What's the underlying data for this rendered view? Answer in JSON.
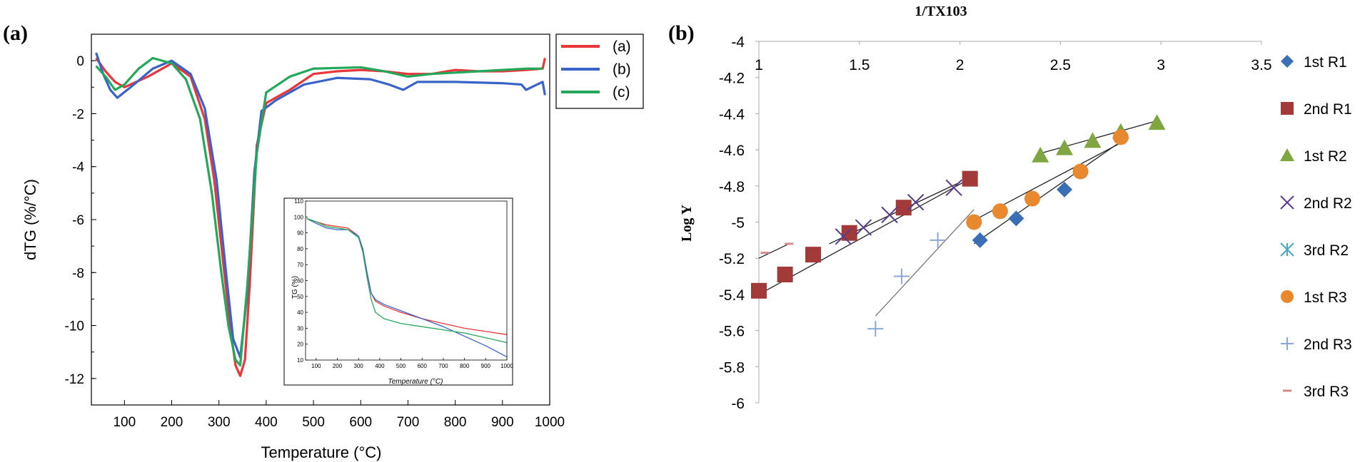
{
  "panel_a": {
    "label": "(a)",
    "chart_data": {
      "type": "line",
      "xlabel": "Temperature (°C)",
      "ylabel": "dTG (%/°C)",
      "xlim": [
        30,
        1000
      ],
      "ylim": [
        -13,
        1
      ],
      "xticks": [
        100,
        200,
        300,
        400,
        500,
        600,
        700,
        800,
        900,
        1000
      ],
      "yticks": [
        0,
        -2,
        -4,
        -6,
        -8,
        -10,
        -12
      ],
      "legend_position": "top-right outside",
      "series": [
        {
          "name": "(a)",
          "color": "#e8363a",
          "x": [
            40,
            60,
            80,
            100,
            150,
            200,
            240,
            270,
            290,
            310,
            325,
            335,
            345,
            355,
            365,
            380,
            400,
            450,
            500,
            550,
            600,
            650,
            700,
            750,
            800,
            850,
            900,
            950,
            985,
            990
          ],
          "y": [
            0.1,
            -0.4,
            -0.8,
            -1.0,
            -0.6,
            -0.1,
            -0.6,
            -2.2,
            -4.5,
            -7.8,
            -10.2,
            -11.5,
            -11.9,
            -11.3,
            -8.5,
            -3.2,
            -1.6,
            -1.1,
            -0.5,
            -0.4,
            -0.35,
            -0.4,
            -0.5,
            -0.5,
            -0.35,
            -0.4,
            -0.4,
            -0.35,
            -0.3,
            0.1
          ]
        },
        {
          "name": "(b)",
          "color": "#3a63c8",
          "x": [
            40,
            55,
            70,
            85,
            120,
            160,
            200,
            240,
            270,
            295,
            315,
            330,
            345,
            360,
            375,
            390,
            420,
            480,
            550,
            620,
            660,
            690,
            720,
            800,
            900,
            940,
            950,
            985,
            990
          ],
          "y": [
            0.3,
            -0.5,
            -1.1,
            -1.4,
            -0.9,
            -0.3,
            0.0,
            -0.5,
            -1.8,
            -4.5,
            -8.0,
            -10.5,
            -11.2,
            -8.8,
            -4.2,
            -1.9,
            -1.5,
            -0.9,
            -0.65,
            -0.7,
            -0.9,
            -1.1,
            -0.8,
            -0.8,
            -0.85,
            -0.9,
            -1.1,
            -0.8,
            -1.3
          ]
        },
        {
          "name": "(c)",
          "color": "#22a85a",
          "x": [
            40,
            60,
            80,
            100,
            130,
            160,
            200,
            230,
            260,
            285,
            305,
            320,
            335,
            345,
            360,
            380,
            400,
            450,
            500,
            600,
            650,
            700,
            750,
            800,
            850,
            900,
            950,
            985
          ],
          "y": [
            -0.2,
            -0.6,
            -1.1,
            -0.9,
            -0.3,
            0.1,
            -0.1,
            -0.7,
            -2.2,
            -5.0,
            -8.0,
            -10.0,
            -11.3,
            -11.5,
            -8.5,
            -3.5,
            -1.2,
            -0.6,
            -0.3,
            -0.25,
            -0.4,
            -0.6,
            -0.5,
            -0.45,
            -0.4,
            -0.35,
            -0.3,
            -0.3
          ]
        }
      ]
    },
    "inset": {
      "chart_data": {
        "type": "line",
        "xlabel": "Temperature (°C)",
        "ylabel": "TG (%)",
        "xlim": [
          50,
          1000
        ],
        "ylim": [
          10,
          110
        ],
        "xticks": [
          100,
          200,
          300,
          400,
          500,
          600,
          700,
          800,
          900,
          1000
        ],
        "yticks": [
          10,
          20,
          30,
          40,
          50,
          60,
          70,
          80,
          90,
          100,
          110
        ],
        "series": [
          {
            "color": "#e8363a",
            "x": [
              55,
              100,
              150,
              200,
              250,
              300,
              320,
              340,
              360,
              380,
              420,
              500,
              600,
              700,
              800,
              900,
              1000
            ],
            "y": [
              99,
              97,
              95,
              94,
              93,
              88,
              80,
              65,
              52,
              47,
              44,
              40,
              36,
              33,
              30,
              28,
              26
            ]
          },
          {
            "color": "#3a63c8",
            "x": [
              55,
              100,
              150,
              200,
              250,
              300,
              320,
              340,
              360,
              380,
              420,
              500,
              600,
              700,
              800,
              900,
              1000
            ],
            "y": [
              99,
              96,
              93,
              92,
              92,
              88,
              80,
              65,
              52,
              48,
              45,
              41,
              36,
              31,
              25,
              19,
              12
            ]
          },
          {
            "color": "#22a85a",
            "x": [
              55,
              100,
              150,
              200,
              250,
              300,
              320,
              340,
              360,
              380,
              420,
              500,
              600,
              700,
              800,
              900,
              1000
            ],
            "y": [
              99,
              97,
              94,
              93,
              92,
              87,
              78,
              62,
              48,
              40,
              36,
              33,
              31,
              29,
              27,
              24,
              21
            ]
          }
        ]
      }
    }
  },
  "panel_b": {
    "label": "(b)",
    "chart_data": {
      "type": "scatter",
      "xlabel": "1/TX103",
      "ylabel": "Log Y",
      "xlim": [
        1,
        3.5
      ],
      "ylim": [
        -6,
        -4
      ],
      "xticks": [
        1,
        1.5,
        2,
        2.5,
        3,
        3.5
      ],
      "yticks": [
        -4,
        -4.2,
        -4.4,
        -4.6,
        -4.8,
        -5,
        -5.2,
        -5.4,
        -5.6,
        -5.8,
        -6
      ],
      "x_axis_position": "top",
      "legend_position": "right",
      "series": [
        {
          "name": "1st R1",
          "marker": "diamond",
          "color": "#3a6fb5",
          "x": [
            2.1,
            2.28,
            2.52
          ],
          "y": [
            -5.1,
            -4.98,
            -4.82
          ],
          "fit": [
            [
              2.07,
              -5.12
            ],
            [
              2.78,
              -4.57
            ]
          ]
        },
        {
          "name": "2nd R1",
          "marker": "square",
          "color": "#a33a3a",
          "x": [
            1.0,
            1.13,
            1.27,
            1.45,
            1.72,
            2.05
          ],
          "y": [
            -5.38,
            -5.29,
            -5.18,
            -5.06,
            -4.92,
            -4.76
          ],
          "fit": [
            [
              1.0,
              -5.4
            ],
            [
              2.05,
              -4.76
            ]
          ]
        },
        {
          "name": "1st R2",
          "marker": "triangle",
          "color": "#7fa640",
          "x": [
            2.4,
            2.52,
            2.66,
            2.8,
            2.98
          ],
          "y": [
            -4.63,
            -4.59,
            -4.55,
            -4.5,
            -4.45
          ],
          "fit": [
            [
              2.4,
              -4.62
            ],
            [
              2.98,
              -4.44
            ]
          ]
        },
        {
          "name": "2nd R2",
          "marker": "x",
          "color": "#5a3d88",
          "x": [
            1.42,
            1.52,
            1.65,
            1.78,
            1.97
          ],
          "y": [
            -5.08,
            -5.03,
            -4.96,
            -4.89,
            -4.81
          ],
          "fit": [
            [
              1.35,
              -5.12
            ],
            [
              2.0,
              -4.78
            ]
          ]
        },
        {
          "name": "3rd R2",
          "marker": "asterisk",
          "color": "#4aa8c8",
          "x": [],
          "y": []
        },
        {
          "name": "1st R3",
          "marker": "circle",
          "color": "#e8892f",
          "x": [
            2.07,
            2.2,
            2.36,
            2.6,
            2.8
          ],
          "y": [
            -5.0,
            -4.94,
            -4.87,
            -4.72,
            -4.53
          ],
          "fit": [
            [
              2.07,
              -4.99
            ],
            [
              2.82,
              -4.55
            ]
          ]
        },
        {
          "name": "2nd R3",
          "marker": "plus",
          "color": "#8aa8d8",
          "x": [
            1.58,
            1.71,
            1.89
          ],
          "y": [
            -5.59,
            -5.3,
            -5.1
          ],
          "fit": [
            [
              1.58,
              -5.52
            ],
            [
              2.07,
              -4.93
            ]
          ]
        },
        {
          "name": "3rd R3",
          "marker": "dash",
          "color": "#d88a8a",
          "x": [
            1.03,
            1.15
          ],
          "y": [
            -5.17,
            -5.12
          ],
          "fit": [
            [
              1.0,
              -5.2
            ],
            [
              1.15,
              -5.12
            ]
          ]
        }
      ]
    }
  }
}
